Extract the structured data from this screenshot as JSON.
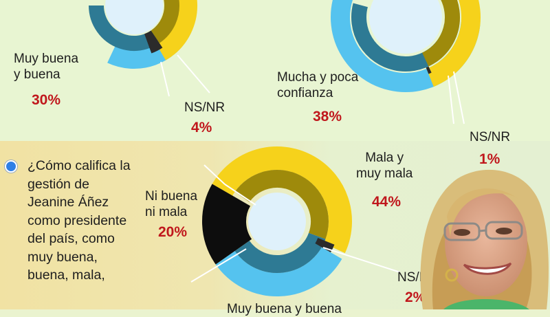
{
  "question": "¿Cómo califica la\ngestión de\nJeanine Áñez\ncomo presidente\ndel país, como\nmuy buena,\nbuena, mala,",
  "colors": {
    "light_blue": "#55c3ef",
    "teal": "#2e7a94",
    "olive": "#9e8a0b",
    "yellow": "#f6d21b",
    "dark": "#2b2b2b",
    "black": "#0d0d0d",
    "center": "#dff1fb",
    "pct_red": "#c0171c"
  },
  "labels": {
    "c1_good": "Muy buena\ny buena",
    "c1_good_pct": "30%",
    "c1_nsnr": "NS/NR",
    "c1_nsnr_pct": "4%",
    "c2_conf": "Mucha y poca\nconfianza",
    "c2_conf_pct": "38%",
    "c2_nsnr": "NS/NR",
    "c2_nsnr_pct": "1%",
    "c3_bad": "Mala y\nmuy mala",
    "c3_bad_pct": "44%",
    "c3_neither": "Ni buena\nni mala",
    "c3_neither_pct": "20%",
    "c3_nsnr": "NS/NR",
    "c3_nsnr_pct": "2%",
    "c3_good": "Muy buena y buena"
  },
  "chart_data": [
    {
      "type": "pie",
      "slices": [
        {
          "label": "Muy buena y buena",
          "value": 30
        },
        {
          "label": "NS/NR",
          "value": 4
        }
      ]
    },
    {
      "type": "pie",
      "slices": [
        {
          "label": "Mucha y poca confianza",
          "value": 38
        },
        {
          "label": "NS/NR",
          "value": 1
        }
      ]
    },
    {
      "type": "pie",
      "slices": [
        {
          "label": "Mala y muy mala",
          "value": 44
        },
        {
          "label": "Ni buena ni mala",
          "value": 20
        },
        {
          "label": "NS/NR",
          "value": 2
        },
        {
          "label": "Muy buena y buena",
          "value": null
        }
      ]
    }
  ],
  "photo": {
    "icon": "person-photo"
  }
}
